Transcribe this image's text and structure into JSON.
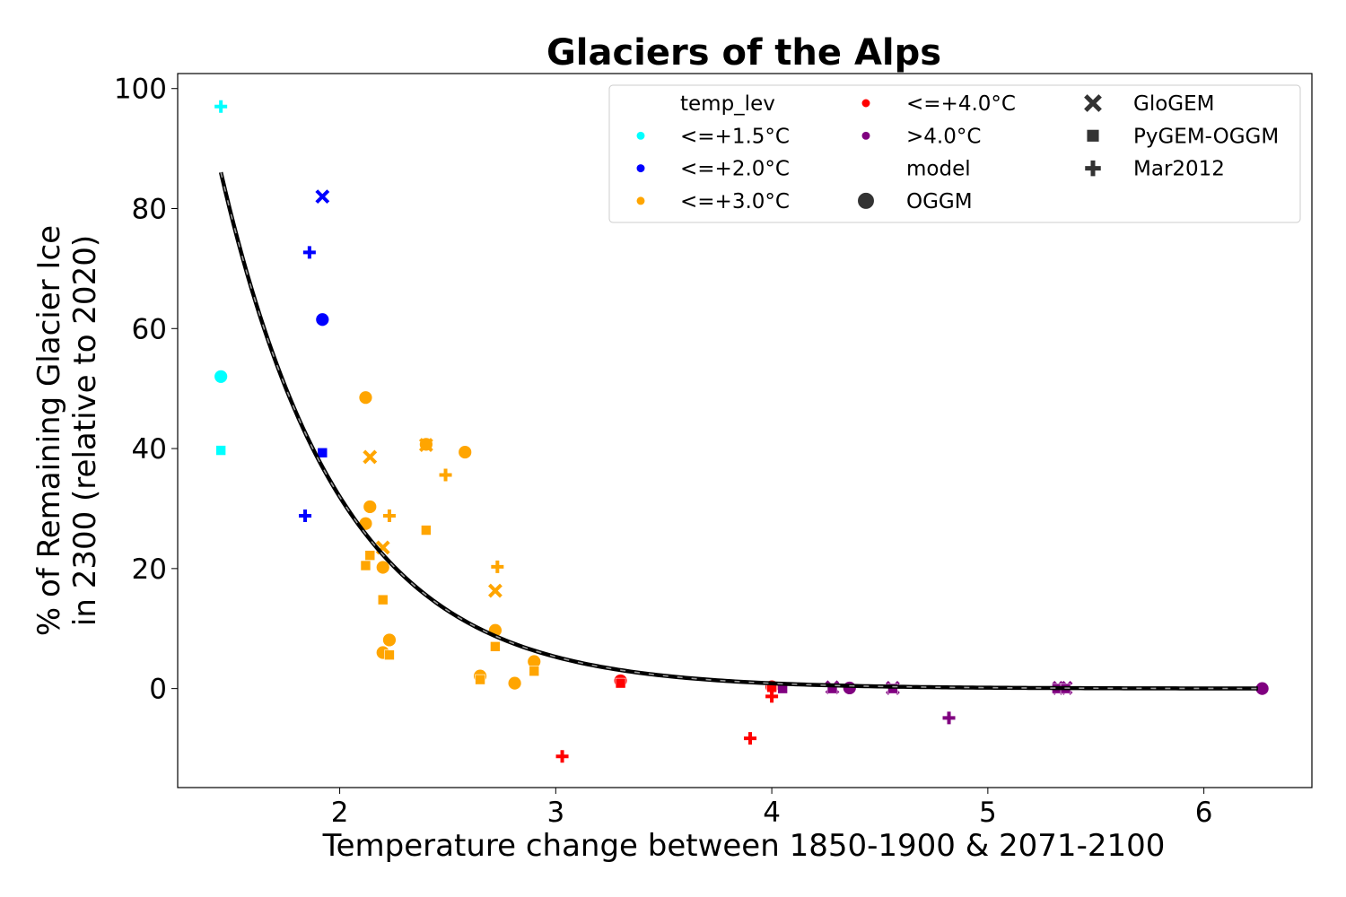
{
  "chart_data": {
    "type": "scatter",
    "title": "Glaciers of the Alps",
    "xlabel": "Temperature change between 1850-1900 & 2071-2100",
    "ylabel_line1": "% of Remaining Glacier Ice",
    "ylabel_line2": "in 2300 (relative to 2020)",
    "xlim": [
      1.25,
      6.5
    ],
    "ylim": [
      -16.5,
      102.5
    ],
    "xticks": [
      2,
      3,
      4,
      5,
      6
    ],
    "yticks": [
      0,
      20,
      40,
      60,
      80,
      100
    ],
    "grid": false,
    "legend_position": "top-right",
    "legend": {
      "hue_title": "temp_lev",
      "style_title": "model",
      "hue_entries": [
        {
          "label": "<=+1.5°C",
          "color": "#00ffff"
        },
        {
          "label": "<=+2.0°C",
          "color": "#0000ff"
        },
        {
          "label": "<=+3.0°C",
          "color": "#ffa500"
        },
        {
          "label": "<=+4.0°C",
          "color": "#ff0000"
        },
        {
          "label": ">4.0°C",
          "color": "#800080"
        }
      ],
      "style_entries": [
        {
          "label": "OGGM",
          "marker": "circle"
        },
        {
          "label": "GloGEM",
          "marker": "x"
        },
        {
          "label": "PyGEM-OGGM",
          "marker": "square"
        },
        {
          "label": "Mar2012",
          "marker": "plus"
        }
      ]
    },
    "fit_curve": {
      "a": 1170,
      "b": 1.8,
      "x_start": 1.45,
      "x_end": 6.25,
      "color": "#000000"
    },
    "series": [
      {
        "temp_lev": "<=+1.5°C",
        "color": "#00ffff",
        "points": [
          {
            "x": 1.45,
            "y": 52,
            "m": "circle"
          },
          {
            "x": 1.45,
            "y": 39.7,
            "m": "square"
          },
          {
            "x": 1.45,
            "y": 97,
            "m": "plus"
          }
        ]
      },
      {
        "temp_lev": "<=+2.0°C",
        "color": "#0000ff",
        "points": [
          {
            "x": 1.92,
            "y": 61.5,
            "m": "circle"
          },
          {
            "x": 1.92,
            "y": 82,
            "m": "x"
          },
          {
            "x": 1.92,
            "y": 39.3,
            "m": "square"
          },
          {
            "x": 1.86,
            "y": 72.7,
            "m": "plus"
          },
          {
            "x": 1.84,
            "y": 28.8,
            "m": "plus"
          }
        ]
      },
      {
        "temp_lev": "<=+3.0°C",
        "color": "#ffa500",
        "points": [
          {
            "x": 2.12,
            "y": 48.5,
            "m": "circle"
          },
          {
            "x": 2.14,
            "y": 30.3,
            "m": "circle"
          },
          {
            "x": 2.12,
            "y": 27.5,
            "m": "circle"
          },
          {
            "x": 2.2,
            "y": 20.2,
            "m": "circle"
          },
          {
            "x": 2.2,
            "y": 6.0,
            "m": "circle"
          },
          {
            "x": 2.23,
            "y": 8.1,
            "m": "circle"
          },
          {
            "x": 2.4,
            "y": 40.7,
            "m": "circle"
          },
          {
            "x": 2.58,
            "y": 39.4,
            "m": "circle"
          },
          {
            "x": 2.72,
            "y": 9.7,
            "m": "circle"
          },
          {
            "x": 2.65,
            "y": 2.1,
            "m": "circle"
          },
          {
            "x": 2.81,
            "y": 0.9,
            "m": "circle"
          },
          {
            "x": 2.9,
            "y": 4.5,
            "m": "circle"
          },
          {
            "x": 2.14,
            "y": 38.6,
            "m": "x"
          },
          {
            "x": 2.4,
            "y": 40.6,
            "m": "x"
          },
          {
            "x": 2.2,
            "y": 23.5,
            "m": "x"
          },
          {
            "x": 2.72,
            "y": 16.3,
            "m": "x"
          },
          {
            "x": 2.12,
            "y": 20.5,
            "m": "square"
          },
          {
            "x": 2.14,
            "y": 22.2,
            "m": "square"
          },
          {
            "x": 2.2,
            "y": 14.8,
            "m": "square"
          },
          {
            "x": 2.23,
            "y": 5.6,
            "m": "square"
          },
          {
            "x": 2.4,
            "y": 26.4,
            "m": "square"
          },
          {
            "x": 2.72,
            "y": 7.0,
            "m": "square"
          },
          {
            "x": 2.65,
            "y": 1.5,
            "m": "square"
          },
          {
            "x": 2.9,
            "y": 2.9,
            "m": "square"
          },
          {
            "x": 2.23,
            "y": 28.8,
            "m": "plus"
          },
          {
            "x": 2.49,
            "y": 35.6,
            "m": "plus"
          },
          {
            "x": 2.73,
            "y": 20.3,
            "m": "plus"
          }
        ]
      },
      {
        "temp_lev": "<=+4.0°C",
        "color": "#ff0000",
        "points": [
          {
            "x": 3.3,
            "y": 1.3,
            "m": "circle"
          },
          {
            "x": 4.0,
            "y": 0.3,
            "m": "circle"
          },
          {
            "x": 3.3,
            "y": 0.9,
            "m": "square"
          },
          {
            "x": 4.0,
            "y": 0.2,
            "m": "square"
          },
          {
            "x": 3.03,
            "y": -11.3,
            "m": "plus"
          },
          {
            "x": 3.9,
            "y": -8.3,
            "m": "plus"
          },
          {
            "x": 4.0,
            "y": -1.3,
            "m": "plus"
          }
        ]
      },
      {
        "temp_lev": ">4.0°C",
        "color": "#800080",
        "points": [
          {
            "x": 4.36,
            "y": 0.1,
            "m": "circle"
          },
          {
            "x": 6.27,
            "y": 0.0,
            "m": "circle"
          },
          {
            "x": 4.28,
            "y": 0.2,
            "m": "x"
          },
          {
            "x": 4.56,
            "y": 0.1,
            "m": "x"
          },
          {
            "x": 5.33,
            "y": 0.1,
            "m": "x"
          },
          {
            "x": 5.36,
            "y": 0.1,
            "m": "x"
          },
          {
            "x": 4.05,
            "y": 0.0,
            "m": "square"
          },
          {
            "x": 4.28,
            "y": 0.0,
            "m": "square"
          },
          {
            "x": 4.56,
            "y": 0.0,
            "m": "square"
          },
          {
            "x": 5.32,
            "y": 0.0,
            "m": "square"
          },
          {
            "x": 5.36,
            "y": 0.0,
            "m": "square"
          },
          {
            "x": 4.82,
            "y": -4.9,
            "m": "plus"
          }
        ]
      }
    ]
  }
}
